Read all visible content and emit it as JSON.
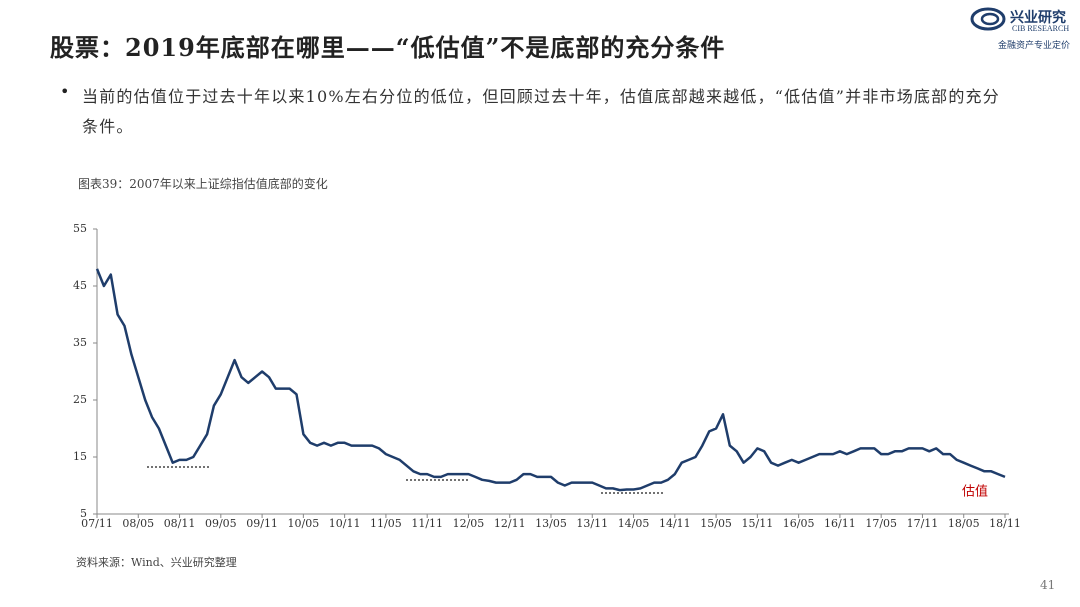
{
  "header": {
    "title": "股票：2019年底部在哪里——“低估值”不是底部的充分条件"
  },
  "logo": {
    "name": "兴业研究",
    "english": "CIB RESEARCH",
    "slogan": "金融资产专业定价"
  },
  "bullet": "当前的估值位于过去十年以来10%左右分位的低位，但回顾过去十年，估值底部越来越低，“低估值”并非市场底部的充分条件。",
  "caption": "图表39：2007年以来上证综指估值底部的变化",
  "source": "资料来源：Wind、兴业研究整理",
  "page_number": "41",
  "chart_data": {
    "type": "line",
    "categories": [
      "07/11",
      null,
      null,
      null,
      null,
      null,
      "08/05",
      null,
      null,
      null,
      null,
      null,
      "08/11",
      null,
      null,
      null,
      null,
      null,
      "09/05",
      null,
      null,
      null,
      null,
      null,
      "09/11",
      null,
      null,
      null,
      null,
      null,
      "10/05",
      null,
      null,
      null,
      null,
      null,
      "10/11",
      null,
      null,
      null,
      null,
      null,
      "11/05",
      null,
      null,
      null,
      null,
      null,
      "11/11",
      null,
      null,
      null,
      null,
      null,
      "12/05",
      null,
      null,
      null,
      null,
      null,
      "12/11",
      null,
      null,
      null,
      null,
      null,
      "13/05",
      null,
      null,
      null,
      null,
      null,
      "13/11",
      null,
      null,
      null,
      null,
      null,
      "14/05",
      null,
      null,
      null,
      null,
      null,
      "14/11",
      null,
      null,
      null,
      null,
      null,
      "15/05",
      null,
      null,
      null,
      null,
      null,
      "15/11",
      null,
      null,
      null,
      null,
      null,
      "16/05",
      null,
      null,
      null,
      null,
      null,
      "16/11",
      null,
      null,
      null,
      null,
      null,
      "17/05",
      null,
      null,
      null,
      null,
      null,
      "17/11",
      null,
      null,
      null,
      null,
      null,
      "18/05",
      null,
      null,
      null,
      null,
      null,
      "18/11"
    ],
    "series": [
      {
        "name": "估值",
        "color": "#1f3d6b",
        "values": [
          48,
          45,
          47,
          40,
          38,
          33,
          29,
          25,
          22,
          20,
          17,
          14,
          14.5,
          14.5,
          15,
          17,
          19,
          24,
          26,
          29,
          32,
          29,
          28,
          29,
          30,
          29,
          27,
          27,
          27,
          26,
          19,
          17.5,
          17,
          17.5,
          17,
          17.5,
          17.5,
          17,
          17,
          17,
          17,
          16.5,
          15.5,
          15,
          14.5,
          13.5,
          12.5,
          12,
          12,
          11.5,
          11.5,
          12,
          12,
          12,
          12,
          11.5,
          11,
          10.8,
          10.5,
          10.5,
          10.5,
          11,
          12,
          12,
          11.5,
          11.5,
          11.5,
          10.5,
          10,
          10.5,
          10.5,
          10.5,
          10.5,
          10,
          9.5,
          9.5,
          9.2,
          9.3,
          9.3,
          9.5,
          10,
          10.5,
          10.5,
          11,
          12,
          14,
          14.5,
          15,
          17,
          19.5,
          20,
          22.5,
          17,
          16,
          14,
          15,
          16.5,
          16,
          14,
          13.5,
          14,
          14.5,
          14,
          14.5,
          15,
          15.5,
          15.5,
          15.5,
          16,
          15.5,
          16,
          16.5,
          16.5,
          16.5,
          15.5,
          15.5,
          16,
          16,
          16.5,
          16.5,
          16.5,
          16,
          16.5,
          15.5,
          15.5,
          14.5,
          14,
          13.5,
          13,
          12.5,
          12.5,
          12,
          11.5
        ]
      }
    ],
    "legend_color": "#c00000",
    "ylim": [
      5,
      55
    ],
    "yticks": [
      5,
      15,
      25,
      35,
      45,
      55
    ],
    "grid": false
  }
}
